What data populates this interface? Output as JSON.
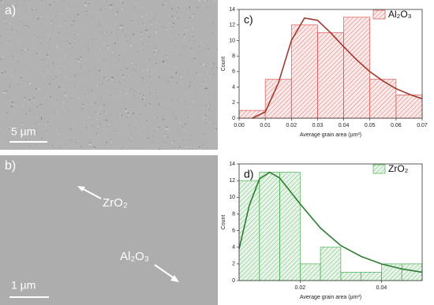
{
  "images": [
    {
      "label": "a)",
      "scale_bar": "5 µm"
    },
    {
      "label": "b)",
      "scale_bar": "1 µm",
      "annotations": [
        "ZrO₂",
        "Al₂O₃"
      ]
    }
  ],
  "chart_data": [
    {
      "type": "histogram",
      "panel_label": "c)",
      "legend": "Al₂O₃",
      "color": "#d9534f",
      "bins": [
        0,
        0.01,
        0.02,
        0.03,
        0.04,
        0.05,
        0.06,
        0.07
      ],
      "values": [
        1,
        5,
        12,
        11,
        13,
        5,
        3
      ],
      "fit": {
        "color": "#a0392b",
        "x": [
          0.005,
          0.01,
          0.015,
          0.02,
          0.025,
          0.03,
          0.035,
          0.04,
          0.045,
          0.05,
          0.055,
          0.06,
          0.065,
          0.07
        ],
        "values": [
          0,
          0.8,
          4.5,
          10,
          12.9,
          12.6,
          11,
          9.2,
          7.5,
          6,
          4.8,
          3.8,
          3.1,
          2.5
        ]
      },
      "xlim": [
        0,
        0.07
      ],
      "xticks": [
        {
          "value": 0,
          "label": "0.00"
        },
        0.01,
        0.02,
        0.03,
        0.04,
        0.05,
        0.06,
        0.07
      ],
      "ylim": [
        0,
        14
      ],
      "yticks": [
        0,
        2,
        4,
        6,
        8,
        10,
        12,
        14
      ],
      "x_label": "Average grain area (µm²)",
      "y_label": "Count"
    },
    {
      "type": "histogram",
      "panel_label": "d)",
      "legend": "ZrO₂",
      "color": "#4caf50",
      "bins": [
        0.005,
        0.01,
        0.015,
        0.02,
        0.025,
        0.03,
        0.035,
        0.04,
        0.045,
        0.05
      ],
      "values": [
        12,
        13,
        13,
        2,
        4,
        1,
        1,
        2,
        2
      ],
      "fit": {
        "color": "#2e7d32",
        "x": [
          0.005,
          0.0075,
          0.01,
          0.0125,
          0.015,
          0.02,
          0.025,
          0.03,
          0.035,
          0.04,
          0.045,
          0.05
        ],
        "values": [
          3.8,
          9,
          12.2,
          13,
          12.3,
          9.2,
          6.3,
          4.2,
          2.9,
          2,
          1.4,
          1
        ]
      },
      "xlim": [
        0.005,
        0.05
      ],
      "xticks": [
        0.02,
        0.04
      ],
      "ylim": [
        0,
        14
      ],
      "yticks": [
        0,
        2,
        4,
        6,
        8,
        10,
        12,
        14
      ],
      "x_label": "Average grain area (µm²)",
      "y_label": "Count"
    }
  ]
}
